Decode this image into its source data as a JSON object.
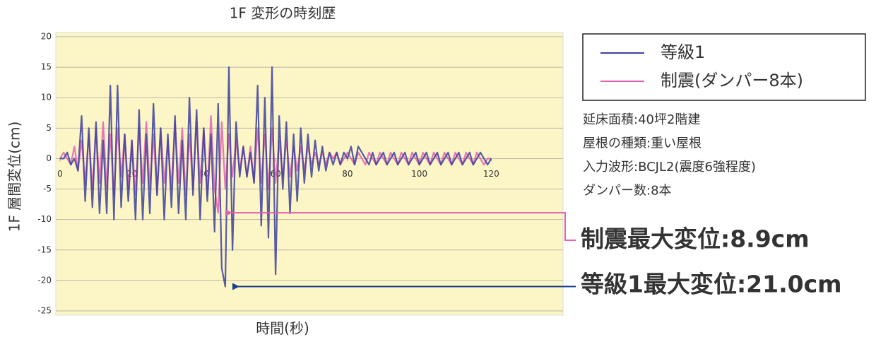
{
  "chart_data": {
    "type": "line",
    "title": "1F 変形の時刻歴",
    "xlabel": "時間(秒)",
    "ylabel": "1F 層間変位(cm)",
    "x": [
      0,
      1,
      2,
      3,
      4,
      5,
      6,
      7,
      8,
      9,
      10,
      11,
      12,
      13,
      14,
      15,
      16,
      17,
      18,
      19,
      20,
      21,
      22,
      23,
      24,
      25,
      26,
      27,
      28,
      29,
      30,
      31,
      32,
      33,
      34,
      35,
      36,
      37,
      38,
      39,
      40,
      41,
      42,
      43,
      44,
      45,
      46,
      47,
      48,
      49,
      50,
      51,
      52,
      53,
      54,
      55,
      56,
      57,
      58,
      59,
      60,
      61,
      62,
      63,
      64,
      65,
      66,
      67,
      68,
      69,
      70,
      71,
      72,
      73,
      74,
      75,
      76,
      77,
      78,
      79,
      80,
      81,
      82,
      83,
      84,
      85,
      86,
      87,
      88,
      89,
      90,
      91,
      92,
      93,
      94,
      95,
      96,
      97,
      98,
      99,
      100,
      101,
      102,
      103,
      104,
      105,
      106,
      107,
      108,
      109,
      110,
      111,
      112,
      113,
      114,
      115,
      116,
      117,
      118,
      119,
      120
    ],
    "series": [
      {
        "name": "等級1",
        "color": "#3c3f9c",
        "values": [
          0,
          0,
          1,
          -1,
          0,
          -2,
          7,
          -7,
          5,
          -8,
          6,
          -9,
          3,
          -9,
          12,
          -10,
          12,
          -8,
          4,
          -7,
          3,
          -10,
          8,
          -10,
          4,
          -9,
          9,
          -6,
          5,
          -10,
          4,
          -8,
          7,
          -9,
          3,
          -10,
          10,
          -6,
          8,
          -10,
          5,
          -7,
          4,
          -12,
          9,
          -18,
          -21,
          15,
          -15,
          6,
          -3,
          2,
          -3,
          1,
          -4,
          12,
          -11,
          10,
          -13,
          15,
          -19,
          7,
          -5,
          6,
          -9,
          4,
          -7,
          5,
          -4,
          4,
          -3,
          3,
          -2,
          2,
          -2,
          1,
          -1,
          1,
          -1,
          1,
          0,
          2,
          -1,
          2,
          1,
          0,
          -1,
          1,
          -1,
          0,
          1,
          -1,
          0,
          1,
          -1,
          0,
          1,
          -1,
          0,
          1,
          -1,
          0,
          1,
          -1,
          0,
          1,
          -1,
          0,
          1,
          -1,
          0,
          1,
          -1,
          0,
          1,
          -1,
          0,
          1,
          0,
          -1,
          0
        ]
      },
      {
        "name": "制震(ダンパー8本)",
        "color": "#e062b4",
        "values": [
          0,
          1,
          0,
          -1,
          2,
          -2,
          3,
          -4,
          4,
          -5,
          5,
          -4,
          6,
          -5,
          4,
          -6,
          5,
          -3,
          4,
          -5,
          3,
          -6,
          5,
          -4,
          6,
          -5,
          4,
          -6,
          5,
          -4,
          3,
          -5,
          6,
          -4,
          5,
          -6,
          4,
          -5,
          6,
          -4,
          5,
          -6,
          7,
          -5,
          -8.9,
          6,
          -5,
          4,
          -3,
          3,
          -2,
          2,
          -3,
          2,
          -4,
          5,
          -4,
          4,
          -5,
          5,
          -4,
          3,
          -3,
          3,
          -3,
          2,
          -2,
          2,
          -2,
          2,
          -1,
          1,
          -1,
          1,
          -1,
          1,
          0,
          1,
          -1,
          0,
          1,
          0,
          -1,
          1,
          0,
          -1,
          1,
          0,
          -1,
          1,
          0,
          -1,
          1,
          0,
          -1,
          1,
          0,
          -1,
          1,
          0,
          -1,
          1,
          0,
          -1,
          1,
          0,
          -1,
          1,
          0,
          -1,
          1,
          0,
          -1,
          1,
          0,
          -1,
          1,
          0,
          -1,
          0,
          0
        ]
      }
    ],
    "xlim": [
      0,
      140
    ],
    "xticks": [
      0,
      20,
      40,
      60,
      80,
      100,
      120
    ],
    "ylim": [
      -25,
      20
    ],
    "yticks": [
      -25,
      -20,
      -15,
      -10,
      -5,
      0,
      5,
      10,
      15,
      20
    ],
    "grid": true,
    "annotations": [
      "制震最大変位:8.9cm",
      "等級1最大変位:21.0cm"
    ],
    "notes": [
      "延床面積:40坪2階建",
      "屋根の種類:重い屋根",
      "入力波形:BCJL2(震度6強程度)",
      "ダンパー数:8本"
    ]
  }
}
